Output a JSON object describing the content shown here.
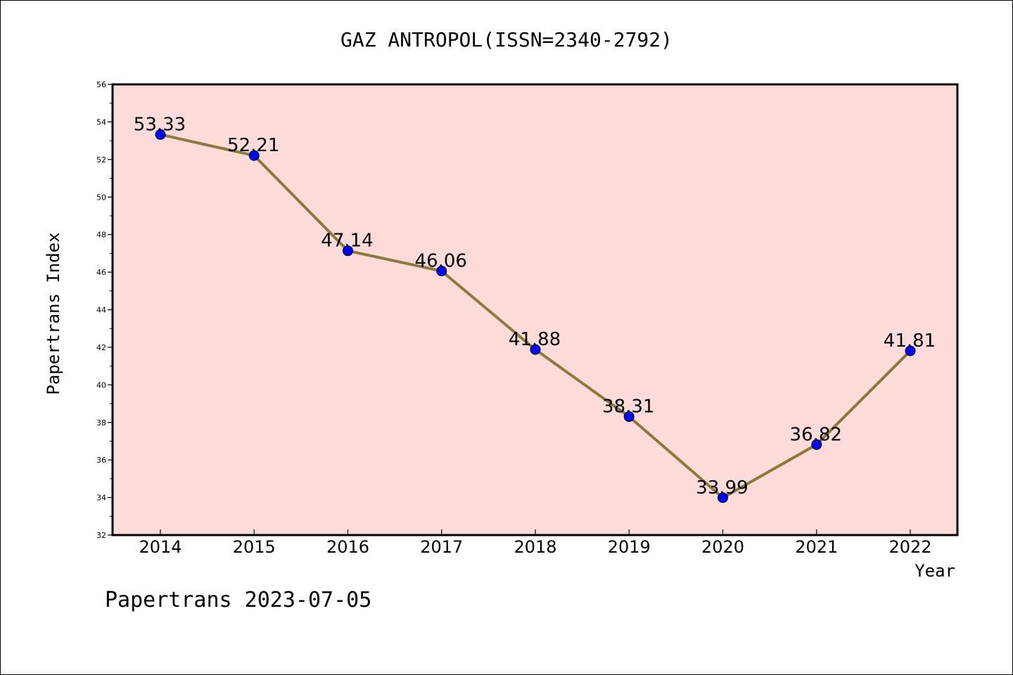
{
  "chart_data": {
    "type": "line",
    "title": "GAZ ANTROPOL(ISSN=2340-2792)",
    "xlabel": "Year",
    "ylabel": "Papertrans Index",
    "x": [
      "2014",
      "2015",
      "2016",
      "2017",
      "2018",
      "2019",
      "2020",
      "2021",
      "2022"
    ],
    "values": [
      53.33,
      52.21,
      47.14,
      46.06,
      41.88,
      38.31,
      33.99,
      36.82,
      41.81
    ],
    "data_labels": [
      "53.33",
      "52.21",
      "47.14",
      "46.06",
      "41.88",
      "38.31",
      "33.99",
      "36.82",
      "41.81"
    ],
    "ylim": [
      32,
      56
    ],
    "yticks": [
      32,
      34,
      36,
      38,
      40,
      42,
      44,
      46,
      48,
      50,
      52,
      54,
      56
    ],
    "ytick_labels": [
      "32",
      "34",
      "36",
      "38",
      "40",
      "42",
      "44",
      "46",
      "48",
      "50",
      "52",
      "54",
      "56"
    ],
    "grid": false,
    "legend": "none",
    "colors": {
      "plot_background": "#fddbd9",
      "line": "#8b7a3a",
      "marker": "#0000ff",
      "axes": "#000000"
    }
  },
  "footer": {
    "text": "Papertrans 2023-07-05"
  }
}
